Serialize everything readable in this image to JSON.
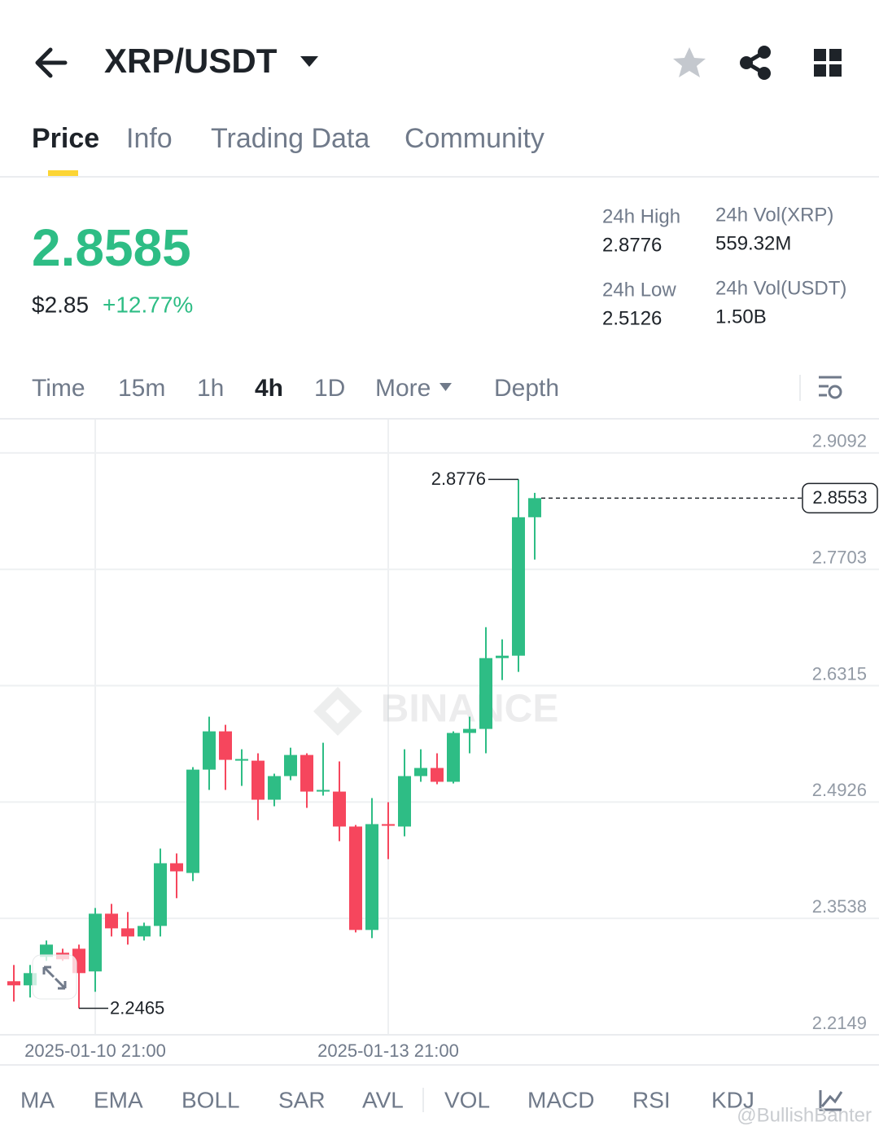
{
  "header": {
    "pair": "XRP/USDT"
  },
  "tabs": [
    "Price",
    "Info",
    "Trading Data",
    "Community"
  ],
  "price": {
    "last": "2.8585",
    "fiat": "$2.85",
    "change": "+12.77%"
  },
  "stats": [
    {
      "label": "24h High",
      "value": "2.8776"
    },
    {
      "label": "24h Low",
      "value": "2.5126"
    },
    {
      "label": "24h Vol(XRP)",
      "value": "559.32M"
    },
    {
      "label": "24h Vol(USDT)",
      "value": "1.50B"
    }
  ],
  "intervals": [
    "Time",
    "15m",
    "1h",
    "4h",
    "1D",
    "More",
    "Depth"
  ],
  "chart_data": {
    "type": "candlestick",
    "watermark": "BINANCE",
    "categories": [
      null,
      null,
      null,
      null,
      null,
      "2025-01-10 21:00",
      null,
      null,
      null,
      null,
      null,
      null,
      null,
      null,
      null,
      null,
      null,
      null,
      null,
      null,
      null,
      null,
      null,
      "2025-01-13 21:00",
      null,
      null,
      null,
      null,
      null,
      null,
      null,
      null,
      null
    ],
    "open": [
      2.2788,
      2.2739,
      2.3079,
      2.3128,
      2.3176,
      2.2905,
      2.3594,
      2.3419,
      2.3322,
      2.3448,
      2.4196,
      2.408,
      2.5313,
      2.577,
      2.542,
      2.542,
      2.4954,
      2.5236,
      2.5488,
      2.5051,
      2.5051,
      2.4634,
      2.34,
      2.4663,
      2.4634,
      2.5236,
      2.5333,
      2.5168,
      2.5751,
      2.5799,
      2.6644,
      2.6673,
      2.8325
    ],
    "high": [
      2.2982,
      2.2982,
      2.3274,
      2.3176,
      2.3225,
      2.3662,
      2.3711,
      2.3614,
      2.3487,
      2.4371,
      2.4313,
      2.5343,
      2.5945,
      2.5848,
      2.5556,
      2.5508,
      2.5265,
      2.5575,
      2.5508,
      2.5634,
      2.5411,
      2.4653,
      2.4974,
      2.4925,
      2.5556,
      2.5556,
      2.5508,
      2.577,
      2.5945,
      2.7013,
      2.6868,
      2.8776,
      2.8616
    ],
    "low": [
      2.2545,
      2.2594,
      2.3031,
      2.3031,
      2.2465,
      2.2662,
      2.3322,
      2.3225,
      2.3274,
      2.3322,
      2.3779,
      2.3983,
      2.5071,
      2.5071,
      2.5119,
      2.4711,
      2.4876,
      2.5187,
      2.4857,
      2.5003,
      2.4459,
      2.3371,
      2.3303,
      2.4245,
      2.4517,
      2.5168,
      2.5139,
      2.5148,
      2.5508,
      2.5508,
      2.6382,
      2.6479,
      2.782
    ],
    "close": [
      2.2739,
      2.2885,
      2.3225,
      2.305,
      2.2885,
      2.3594,
      2.3419,
      2.3322,
      2.3448,
      2.4196,
      2.4099,
      2.5313,
      2.577,
      2.543,
      2.544,
      2.4954,
      2.5236,
      2.5488,
      2.5051,
      2.5071,
      2.4634,
      2.34,
      2.4663,
      2.4643,
      2.5236,
      2.5333,
      2.5168,
      2.5751,
      2.5799,
      2.6644,
      2.6673,
      2.8325,
      2.8553
    ],
    "up_color": "#2ebd85",
    "down_color": "#f6465d",
    "ylim": [
      2.2149,
      2.949
    ],
    "yticks": [
      2.9092,
      2.7703,
      2.6315,
      2.4926,
      2.3538,
      2.2149
    ],
    "grid": true,
    "high_marker": 2.8776,
    "low_marker": 2.2465,
    "last_price": 2.8553
  },
  "indicators": [
    "MA",
    "EMA",
    "BOLL",
    "SAR",
    "AVL",
    "VOL",
    "MACD",
    "RSI",
    "KDJ"
  ],
  "watermark": "@BullishBanter"
}
